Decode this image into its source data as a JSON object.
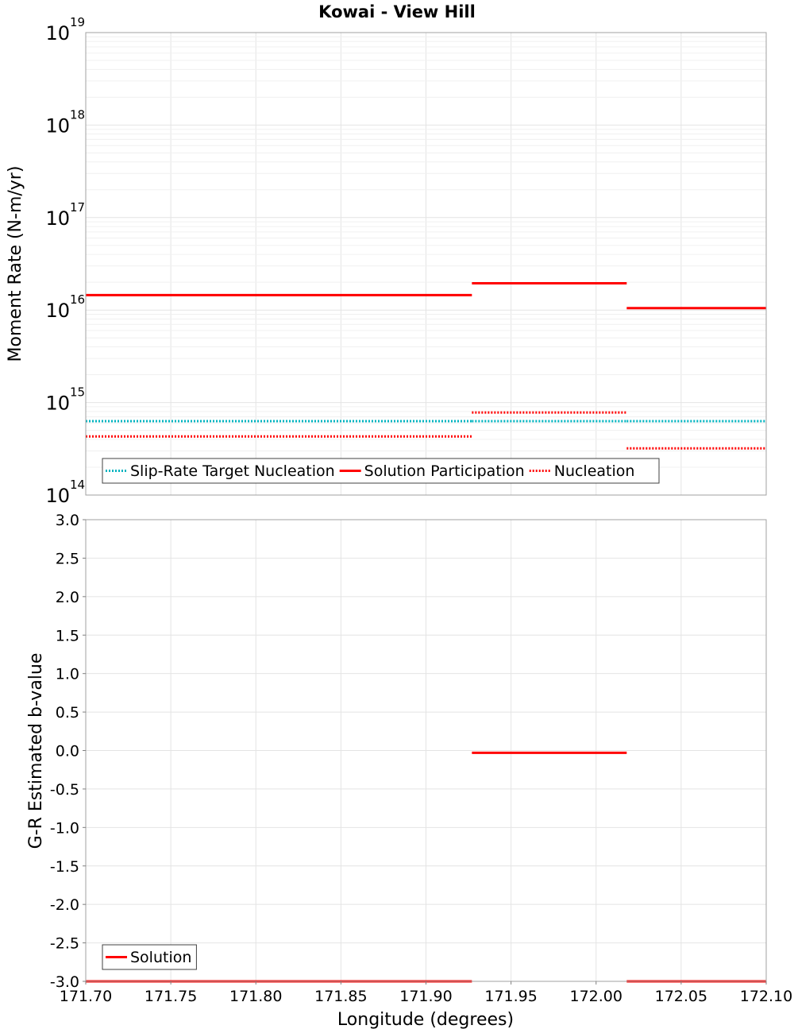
{
  "title": "Kowai - View Hill",
  "colors": {
    "solution": "#ff0000",
    "target": "#00b4c0",
    "grid_major": "#e4e4e4",
    "grid_minor": "#f0f0f0",
    "frame": "#a0a0a0"
  },
  "chart_data": [
    {
      "type": "line",
      "name": "moment-rate-panel",
      "ylabel": "Moment Rate (N-m/yr)",
      "yscale": "log",
      "ylim": [
        100000000000000.0,
        1e+19
      ],
      "y_tick_decades": [
        {
          "base": "10",
          "exp": "14"
        },
        {
          "base": "10",
          "exp": "15"
        },
        {
          "base": "10",
          "exp": "16"
        },
        {
          "base": "10",
          "exp": "17"
        },
        {
          "base": "10",
          "exp": "18"
        },
        {
          "base": "10",
          "exp": "19"
        }
      ],
      "xlim": [
        171.7,
        172.1
      ],
      "legend": {
        "placement": "bottom-left",
        "items": [
          {
            "label": "Slip-Rate Target Nucleation",
            "style": "dotted",
            "color": "#00b4c0"
          },
          {
            "label": "Solution Participation",
            "style": "solid",
            "color": "#ff0000"
          },
          {
            "label": "Nucleation",
            "style": "dotted",
            "color": "#ff0000"
          }
        ]
      },
      "series": [
        {
          "name": "Slip-Rate Target Nucleation",
          "style": "dotted",
          "segments": [
            {
              "x": [
                171.7,
                171.927
              ],
              "y": 630000000000000.0
            },
            {
              "x": [
                171.927,
                172.018
              ],
              "y": 630000000000000.0
            },
            {
              "x": [
                172.018,
                172.1
              ],
              "y": 630000000000000.0
            }
          ]
        },
        {
          "name": "Solution Participation",
          "style": "solid",
          "segments": [
            {
              "x": [
                171.7,
                171.927
              ],
              "y": 1.45e+16
            },
            {
              "x": [
                171.927,
                172.018
              ],
              "y": 1.95e+16
            },
            {
              "x": [
                172.018,
                172.1
              ],
              "y": 1.05e+16
            }
          ]
        },
        {
          "name": "Nucleation",
          "style": "dotted",
          "segments": [
            {
              "x": [
                171.7,
                171.927
              ],
              "y": 430000000000000.0
            },
            {
              "x": [
                171.927,
                172.018
              ],
              "y": 780000000000000.0
            },
            {
              "x": [
                172.018,
                172.1
              ],
              "y": 320000000000000.0
            }
          ]
        }
      ]
    },
    {
      "type": "line",
      "name": "b-value-panel",
      "xlabel": "Longitude (degrees)",
      "ylabel": "G-R Estimated b-value",
      "ylim": [
        -3.0,
        3.0
      ],
      "yticks": [
        3.0,
        2.5,
        2.0,
        1.5,
        1.0,
        0.5,
        0.0,
        -0.5,
        -1.0,
        -1.5,
        -2.0,
        -2.5,
        -3.0
      ],
      "ytick_labels": [
        "3.0",
        "2.5",
        "2.0",
        "1.5",
        "1.0",
        "0.5",
        "0.0",
        "-0.5",
        "-1.0",
        "-1.5",
        "-2.0",
        "-2.5",
        "-3.0"
      ],
      "xlim": [
        171.7,
        172.1
      ],
      "xticks": [
        171.7,
        171.75,
        171.8,
        171.85,
        171.9,
        171.95,
        172.0,
        172.05,
        172.1
      ],
      "xtick_labels": [
        "171.70",
        "171.75",
        "171.80",
        "171.85",
        "171.90",
        "171.95",
        "172.00",
        "172.05",
        "172.10"
      ],
      "legend": {
        "placement": "bottom-left",
        "items": [
          {
            "label": "Solution",
            "style": "solid",
            "color": "#ff0000"
          }
        ]
      },
      "series": [
        {
          "name": "Solution",
          "style": "solid",
          "segments": [
            {
              "x": [
                171.7,
                171.927
              ],
              "y": -3.0
            },
            {
              "x": [
                171.927,
                172.018
              ],
              "y": -0.03
            },
            {
              "x": [
                172.018,
                172.1
              ],
              "y": -3.0
            }
          ]
        }
      ]
    }
  ]
}
